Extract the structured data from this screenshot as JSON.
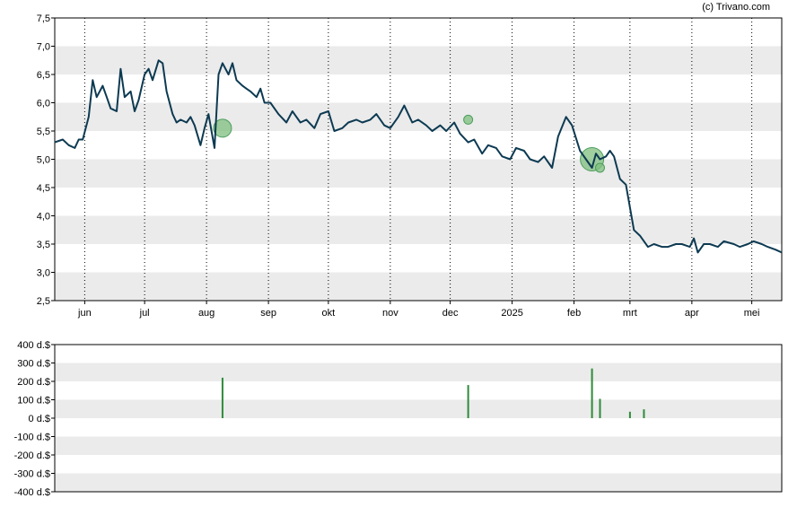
{
  "credit": "(c) Trivano.com",
  "colors": {
    "price_line": "#0d3a52",
    "band": "#ebebeb",
    "bar": "#2e8b3a",
    "marker": "#7fbf7f"
  },
  "chart_data": [
    {
      "type": "line",
      "title": "",
      "x_ticks": [
        "jun",
        "jul",
        "aug",
        "sep",
        "okt",
        "nov",
        "dec",
        "2025",
        "feb",
        "mrt",
        "apr",
        "mei"
      ],
      "y_ticks": [
        "2,5",
        "3,0",
        "3,5",
        "4,0",
        "4,5",
        "5,0",
        "5,5",
        "6,0",
        "6,5",
        "7,0",
        "7,5"
      ],
      "ylim": [
        2.5,
        7.5
      ],
      "x_domain": [
        "2024-05-17",
        "2025-05-16"
      ],
      "grid": "vertical dotted at months, horizontal alternating bands",
      "series": [
        {
          "x": [
            "2024-05-17",
            "2024-05-21",
            "2024-05-24",
            "2024-05-27",
            "2024-05-29",
            "2024-05-31",
            "2024-06-03",
            "2024-06-05",
            "2024-06-07",
            "2024-06-10",
            "2024-06-12",
            "2024-06-14",
            "2024-06-17",
            "2024-06-19",
            "2024-06-21",
            "2024-06-24",
            "2024-06-26",
            "2024-06-28",
            "2024-07-01",
            "2024-07-03",
            "2024-07-05",
            "2024-07-08",
            "2024-07-10",
            "2024-07-12",
            "2024-07-15",
            "2024-07-17",
            "2024-07-19",
            "2024-07-22",
            "2024-07-24",
            "2024-07-26",
            "2024-07-29",
            "2024-07-31",
            "2024-08-02",
            "2024-08-05",
            "2024-08-07",
            "2024-08-09",
            "2024-08-12",
            "2024-08-14",
            "2024-08-16",
            "2024-08-19",
            "2024-08-21",
            "2024-08-23",
            "2024-08-26",
            "2024-08-28",
            "2024-08-30",
            "2024-09-02",
            "2024-09-06",
            "2024-09-10",
            "2024-09-13",
            "2024-09-17",
            "2024-09-20",
            "2024-09-24",
            "2024-09-27",
            "2024-10-01",
            "2024-10-04",
            "2024-10-08",
            "2024-10-11",
            "2024-10-15",
            "2024-10-18",
            "2024-10-22",
            "2024-10-25",
            "2024-10-29",
            "2024-11-01",
            "2024-11-05",
            "2024-11-08",
            "2024-11-12",
            "2024-11-15",
            "2024-11-19",
            "2024-11-22",
            "2024-11-26",
            "2024-11-29",
            "2024-12-03",
            "2024-12-06",
            "2024-12-10",
            "2024-12-13",
            "2024-12-17",
            "2024-12-20",
            "2024-12-24",
            "2024-12-27",
            "2024-12-31",
            "2025-01-03",
            "2025-01-07",
            "2025-01-10",
            "2025-01-14",
            "2025-01-17",
            "2025-01-21",
            "2025-01-24",
            "2025-01-28",
            "2025-01-31",
            "2025-02-04",
            "2025-02-07",
            "2025-02-10",
            "2025-02-12",
            "2025-02-14",
            "2025-02-17",
            "2025-02-19",
            "2025-02-21",
            "2025-02-24",
            "2025-02-27",
            "2025-03-03",
            "2025-03-06",
            "2025-03-10",
            "2025-03-13",
            "2025-03-17",
            "2025-03-20",
            "2025-03-24",
            "2025-03-27",
            "2025-03-31",
            "2025-04-02",
            "2025-04-04",
            "2025-04-07",
            "2025-04-10",
            "2025-04-14",
            "2025-04-17",
            "2025-04-22",
            "2025-04-25",
            "2025-04-29",
            "2025-05-02",
            "2025-05-06",
            "2025-05-09",
            "2025-05-13",
            "2025-05-16"
          ],
          "values": [
            5.3,
            5.35,
            5.25,
            5.2,
            5.35,
            5.35,
            5.75,
            6.4,
            6.1,
            6.3,
            6.1,
            5.9,
            5.85,
            6.6,
            6.1,
            6.2,
            5.85,
            6.05,
            6.5,
            6.6,
            6.4,
            6.75,
            6.7,
            6.2,
            5.8,
            5.65,
            5.7,
            5.65,
            5.75,
            5.6,
            5.25,
            5.55,
            5.8,
            5.2,
            6.5,
            6.7,
            6.5,
            6.7,
            6.4,
            6.3,
            6.25,
            6.2,
            6.1,
            6.25,
            6.0,
            6.0,
            5.8,
            5.65,
            5.85,
            5.65,
            5.7,
            5.55,
            5.8,
            5.85,
            5.5,
            5.55,
            5.65,
            5.7,
            5.65,
            5.7,
            5.8,
            5.6,
            5.55,
            5.75,
            5.95,
            5.65,
            5.7,
            5.6,
            5.5,
            5.6,
            5.5,
            5.65,
            5.45,
            5.3,
            5.35,
            5.1,
            5.25,
            5.2,
            5.05,
            5.0,
            5.2,
            5.15,
            5.0,
            4.95,
            5.05,
            4.85,
            5.4,
            5.75,
            5.6,
            5.15,
            5.0,
            4.85,
            5.1,
            5.0,
            5.05,
            5.15,
            5.05,
            4.65,
            4.55,
            3.75,
            3.65,
            3.45,
            3.5,
            3.45,
            3.45,
            3.5,
            3.5,
            3.45,
            3.6,
            3.35,
            3.5,
            3.5,
            3.45,
            3.55,
            3.5,
            3.45,
            3.5,
            3.55,
            3.5,
            3.45,
            3.4,
            3.35
          ]
        }
      ],
      "markers": [
        {
          "x": "2024-08-09",
          "y": 5.55,
          "size": "medium"
        },
        {
          "x": "2024-12-10",
          "y": 5.7,
          "size": "small"
        },
        {
          "x": "2025-02-10",
          "y": 5.0,
          "size": "large"
        },
        {
          "x": "2025-02-14",
          "y": 4.85,
          "size": "small"
        }
      ]
    },
    {
      "type": "bar",
      "title": "",
      "y_ticks": [
        "400 d.$",
        "300 d.$",
        "200 d.$",
        "100 d.$",
        "0 d.$",
        "-100 d.$",
        "-200 d.$",
        "-300 d.$",
        "-400 d.$"
      ],
      "ylim": [
        -400,
        400
      ],
      "series": [
        {
          "x": [
            "2024-08-09",
            "2024-12-10",
            "2025-02-10",
            "2025-02-14",
            "2025-03-01",
            "2025-03-08"
          ],
          "values": [
            220,
            180,
            270,
            105,
            35,
            48
          ]
        }
      ]
    }
  ]
}
